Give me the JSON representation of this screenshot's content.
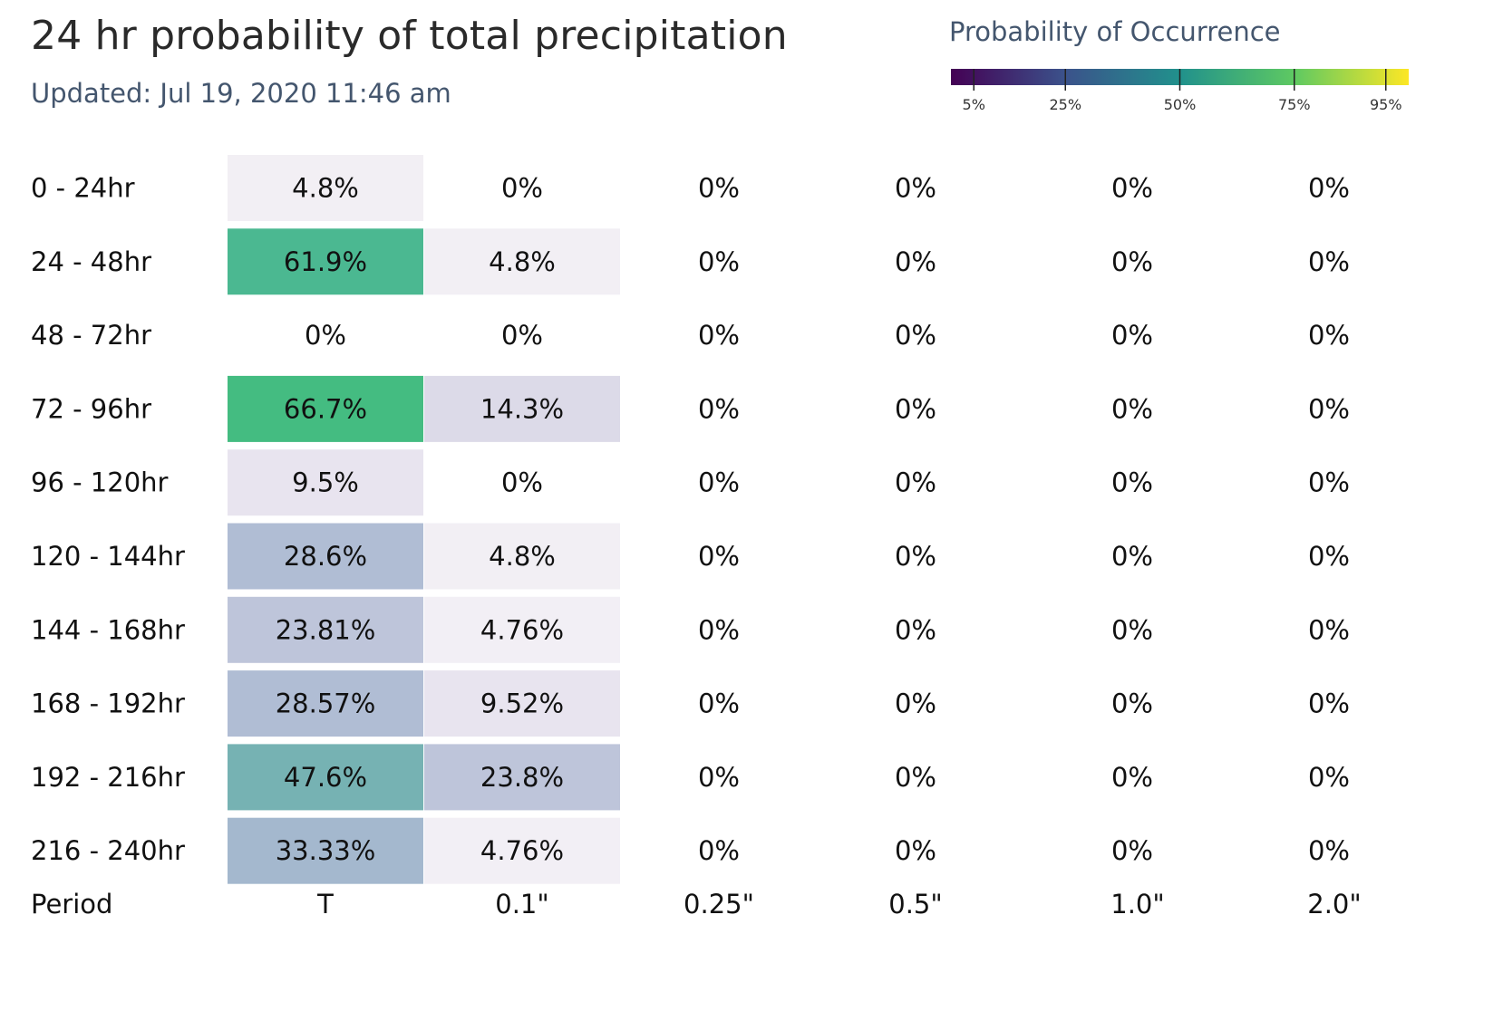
{
  "header": {
    "title": "24 hr probability of total precipitation",
    "updated": "Updated: Jul 19, 2020 11:46 am"
  },
  "legend": {
    "title": "Probability of Occurrence",
    "ticks": [
      {
        "value": 5,
        "label": "5%"
      },
      {
        "value": 25,
        "label": "25%"
      },
      {
        "value": 50,
        "label": "50%"
      },
      {
        "value": 75,
        "label": "75%"
      },
      {
        "value": 95,
        "label": "95%"
      }
    ],
    "gradient_colors": [
      "#440154",
      "#3b528b",
      "#21918c",
      "#5ec962",
      "#fde725"
    ]
  },
  "chart_data": {
    "type": "heatmap",
    "row_label": "Period",
    "rows": [
      "0 - 24hr",
      "24 - 48hr",
      "48 - 72hr",
      "72 - 96hr",
      "96 - 120hr",
      "120 - 144hr",
      "144 - 168hr",
      "168 - 192hr",
      "192 - 216hr",
      "216 - 240hr"
    ],
    "columns": [
      "T",
      "0.1\"",
      "0.25\"",
      "0.5\"",
      "1.0\"",
      "2.0\""
    ],
    "cells": [
      [
        "4.8%",
        "0%",
        "0%",
        "0%",
        "0%",
        "0%"
      ],
      [
        "61.9%",
        "4.8%",
        "0%",
        "0%",
        "0%",
        "0%"
      ],
      [
        "0%",
        "0%",
        "0%",
        "0%",
        "0%",
        "0%"
      ],
      [
        "66.7%",
        "14.3%",
        "0%",
        "0%",
        "0%",
        "0%"
      ],
      [
        "9.5%",
        "0%",
        "0%",
        "0%",
        "0%",
        "0%"
      ],
      [
        "28.6%",
        "4.8%",
        "0%",
        "0%",
        "0%",
        "0%"
      ],
      [
        "23.81%",
        "4.76%",
        "0%",
        "0%",
        "0%",
        "0%"
      ],
      [
        "28.57%",
        "9.52%",
        "0%",
        "0%",
        "0%",
        "0%"
      ],
      [
        "47.6%",
        "23.8%",
        "0%",
        "0%",
        "0%",
        "0%"
      ],
      [
        "33.33%",
        "4.76%",
        "0%",
        "0%",
        "0%",
        "0%"
      ]
    ],
    "values": [
      [
        4.8,
        0,
        0,
        0,
        0,
        0
      ],
      [
        61.9,
        4.8,
        0,
        0,
        0,
        0
      ],
      [
        0,
        0,
        0,
        0,
        0,
        0
      ],
      [
        66.7,
        14.3,
        0,
        0,
        0,
        0
      ],
      [
        9.5,
        0,
        0,
        0,
        0,
        0
      ],
      [
        28.6,
        4.8,
        0,
        0,
        0,
        0
      ],
      [
        23.81,
        4.76,
        0,
        0,
        0,
        0
      ],
      [
        28.57,
        9.52,
        0,
        0,
        0,
        0
      ],
      [
        47.6,
        23.8,
        0,
        0,
        0,
        0
      ],
      [
        33.33,
        4.76,
        0,
        0,
        0,
        0
      ]
    ],
    "colorscale": "viridis",
    "zrange": [
      0,
      100
    ]
  }
}
